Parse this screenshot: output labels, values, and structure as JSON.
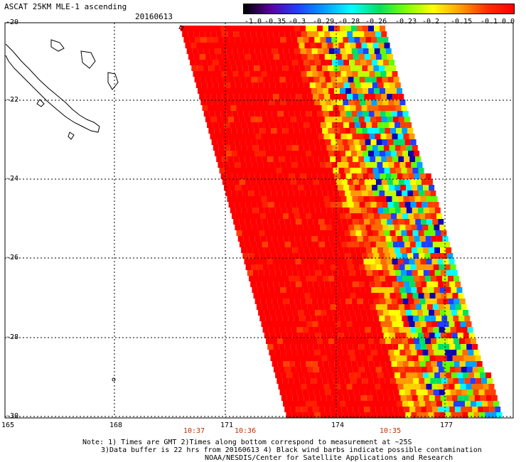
{
  "header": {
    "title": "ASCAT 25KM MLE-1 ascending",
    "date": "20160613"
  },
  "colorbar": {
    "labels": [
      "-1.0",
      "-0.35",
      "-0.3",
      "-0.29",
      "-0.28",
      "-0.26",
      "-0.23",
      "-0.2",
      "-0.15",
      "-0.1",
      "0.0"
    ],
    "colors": [
      "#000000",
      "#5a00a0",
      "#2040ff",
      "#00a0ff",
      "#00ffff",
      "#00e060",
      "#80ff00",
      "#ffff00",
      "#ffa000",
      "#ff3000",
      "#ff0000"
    ]
  },
  "map": {
    "lat_labels": [
      "-20",
      "-22",
      "-24",
      "-26",
      "-28",
      "-30"
    ],
    "lon_labels": [
      "165",
      "168",
      "171",
      "174",
      "177"
    ],
    "time_labels": [
      "10:37",
      "10:36",
      "10:35"
    ],
    "swath_colors": [
      "#ff0000",
      "#ff2000",
      "#ff4000",
      "#ff6a00",
      "#ff9a00",
      "#ffd000",
      "#ffff00",
      "#c0ff00",
      "#60ff00",
      "#00e060",
      "#00ffff",
      "#00a0ff",
      "#2040ff",
      "#1000b0"
    ]
  },
  "footer": {
    "line1": "Note: 1) Times are GMT 2)Times along bottom correspond to measurement at ~25S",
    "line2": "3)Data buffer is 22 hrs from 20160613 4) Black wind barbs indicate possible contamination",
    "line3": "NOAA/NESDIS/Center for Satellite Applications and Research"
  }
}
